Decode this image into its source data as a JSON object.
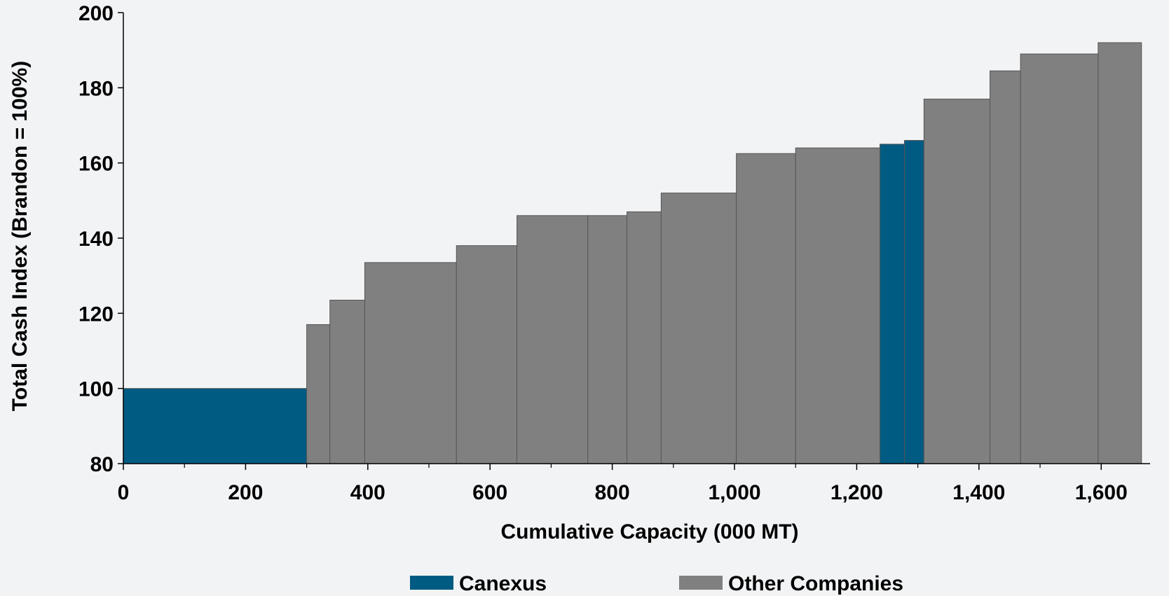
{
  "chart_data": {
    "type": "bar",
    "subtype": "cost-curve",
    "title": "",
    "xlabel": "Cumulative Capacity (000 MT)",
    "ylabel": "Total Cash Index (Brandon = 100%)",
    "xlim": [
      0,
      1680
    ],
    "ylim": [
      80,
      200
    ],
    "x_ticks": [
      0,
      200,
      400,
      600,
      800,
      1000,
      1200,
      1400,
      1600
    ],
    "x_tick_labels": [
      "0",
      "200",
      "400",
      "600",
      "800",
      "1,000",
      "1,200",
      "1,400",
      "1,600"
    ],
    "y_ticks": [
      80,
      100,
      120,
      140,
      160,
      180,
      200
    ],
    "y_tick_labels": [
      "80",
      "100",
      "120",
      "140",
      "160",
      "180",
      "200"
    ],
    "grid": false,
    "legend_position": "bottom",
    "colors": {
      "Canexus": "#005b82",
      "Other Companies": "#808080"
    },
    "series": [
      {
        "name": "Canexus",
        "segments": [
          {
            "x_start": 0,
            "x_end": 300,
            "value": 100
          },
          {
            "x_start": 1238,
            "x_end": 1278,
            "value": 165
          },
          {
            "x_start": 1278,
            "x_end": 1310,
            "value": 166
          }
        ]
      },
      {
        "name": "Other Companies",
        "segments": [
          {
            "x_start": 300,
            "x_end": 338,
            "value": 117
          },
          {
            "x_start": 338,
            "x_end": 395,
            "value": 123.5
          },
          {
            "x_start": 395,
            "x_end": 545,
            "value": 133.5
          },
          {
            "x_start": 545,
            "x_end": 644,
            "value": 138
          },
          {
            "x_start": 644,
            "x_end": 760,
            "value": 146
          },
          {
            "x_start": 760,
            "x_end": 824,
            "value": 146
          },
          {
            "x_start": 824,
            "x_end": 880,
            "value": 147
          },
          {
            "x_start": 880,
            "x_end": 1003,
            "value": 152
          },
          {
            "x_start": 1003,
            "x_end": 1100,
            "value": 162.5
          },
          {
            "x_start": 1100,
            "x_end": 1238,
            "value": 164
          },
          {
            "x_start": 1310,
            "x_end": 1418,
            "value": 177
          },
          {
            "x_start": 1418,
            "x_end": 1468,
            "value": 184.5
          },
          {
            "x_start": 1468,
            "x_end": 1595,
            "value": 189
          },
          {
            "x_start": 1595,
            "x_end": 1666,
            "value": 192
          }
        ]
      }
    ],
    "legend": [
      {
        "label": "Canexus",
        "color": "#005b82"
      },
      {
        "label": "Other Companies",
        "color": "#808080"
      }
    ]
  }
}
